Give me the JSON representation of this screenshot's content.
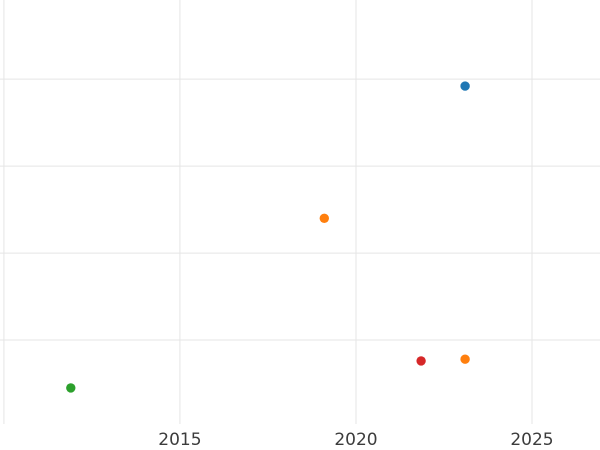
{
  "chart_data": {
    "type": "scatter",
    "title": "",
    "xlabel": "",
    "ylabel": "",
    "grid": true,
    "legend": "none",
    "xlim": [
      2009.89,
      2026.93
    ],
    "ylim": [
      0,
      4.91
    ],
    "x_gridlines": [
      2010,
      2015,
      2020,
      2025
    ],
    "y_gridlines": [
      1,
      2,
      3,
      4
    ],
    "x_ticks": [
      {
        "value": 2015,
        "label": "2015"
      },
      {
        "value": 2020,
        "label": "2020"
      },
      {
        "value": 2025,
        "label": "2025"
      }
    ],
    "y_ticks": [],
    "series": [
      {
        "name": "blue",
        "color": "#1f77b4",
        "points": [
          {
            "x": 2023.1,
            "y": 3.92
          }
        ]
      },
      {
        "name": "orange",
        "color": "#ff7f0e",
        "points": [
          {
            "x": 2019.1,
            "y": 2.4
          },
          {
            "x": 2023.1,
            "y": 0.78
          }
        ]
      },
      {
        "name": "green",
        "color": "#2ca02c",
        "points": [
          {
            "x": 2011.9,
            "y": 0.45
          }
        ]
      },
      {
        "name": "red",
        "color": "#d62728",
        "points": [
          {
            "x": 2021.85,
            "y": 0.76
          }
        ]
      }
    ],
    "marker_radius_px": 4.7
  },
  "style": {
    "background_color": "#ffffff",
    "gridline_color": "#e5e5e5",
    "tick_label_color": "#3c3c3c",
    "tick_font_size": 17
  }
}
